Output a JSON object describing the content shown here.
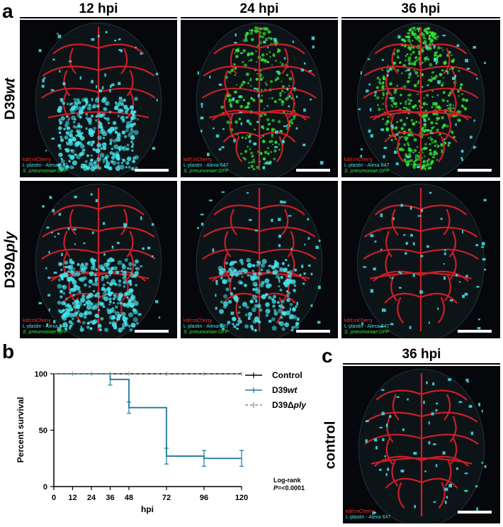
{
  "panel_a": {
    "letter": "a",
    "columns": [
      "12 hpi",
      "24 hpi",
      "36 hpi"
    ],
    "rows": [
      {
        "prefix": "D39",
        "suffix": "wt"
      },
      {
        "prefix": "D39Δ",
        "suffix": "ply"
      }
    ],
    "legend": {
      "line1": "kdrl:mCherry",
      "line2": "L-plastin - Alexa 647",
      "line3": "S. pneumoniae:GFP"
    },
    "colors": {
      "vessels": "#e0202a",
      "leukocytes": "#46e3ea",
      "bacteria": "#34e834"
    }
  },
  "panel_b": {
    "letter": "b",
    "chart_data": {
      "type": "line",
      "title": "",
      "xlabel": "hpi",
      "ylabel": "Percent survival",
      "xlim": [
        0,
        120
      ],
      "ylim": [
        0,
        100
      ],
      "x_ticks": [
        "0",
        "12",
        "24",
        "36",
        "48",
        "72",
        "96",
        "120"
      ],
      "y_ticks": [
        "0",
        "50",
        "100"
      ],
      "series": [
        {
          "name": "Control",
          "style": "solid",
          "color": "#000000",
          "x": [
            0,
            120
          ],
          "y": [
            100,
            100
          ]
        },
        {
          "name_prefix": "D39",
          "name_suffix": "wt",
          "style": "step",
          "color": "#1f7a99",
          "x": [
            0,
            36,
            48,
            72,
            96,
            120
          ],
          "y": [
            100,
            95,
            70,
            27,
            25,
            25
          ],
          "error": [
            0,
            5,
            5,
            7,
            7,
            7
          ]
        },
        {
          "name_prefix": "D39Δ",
          "name_suffix": "ply",
          "style": "dashed",
          "color": "#888888",
          "x": [
            0,
            120
          ],
          "y": [
            100,
            100
          ]
        }
      ],
      "legend_position": "top-right",
      "annotation_line1": "Log-rank",
      "annotation_line2_italic": "P",
      "annotation_line2_rest": "=<0.0001"
    }
  },
  "panel_c": {
    "letter": "c",
    "column": "36 hpi",
    "row_label": "control",
    "legend": {
      "line1": "kdrl:mCherry",
      "line2": "L-plastin - Alexa 647"
    }
  }
}
